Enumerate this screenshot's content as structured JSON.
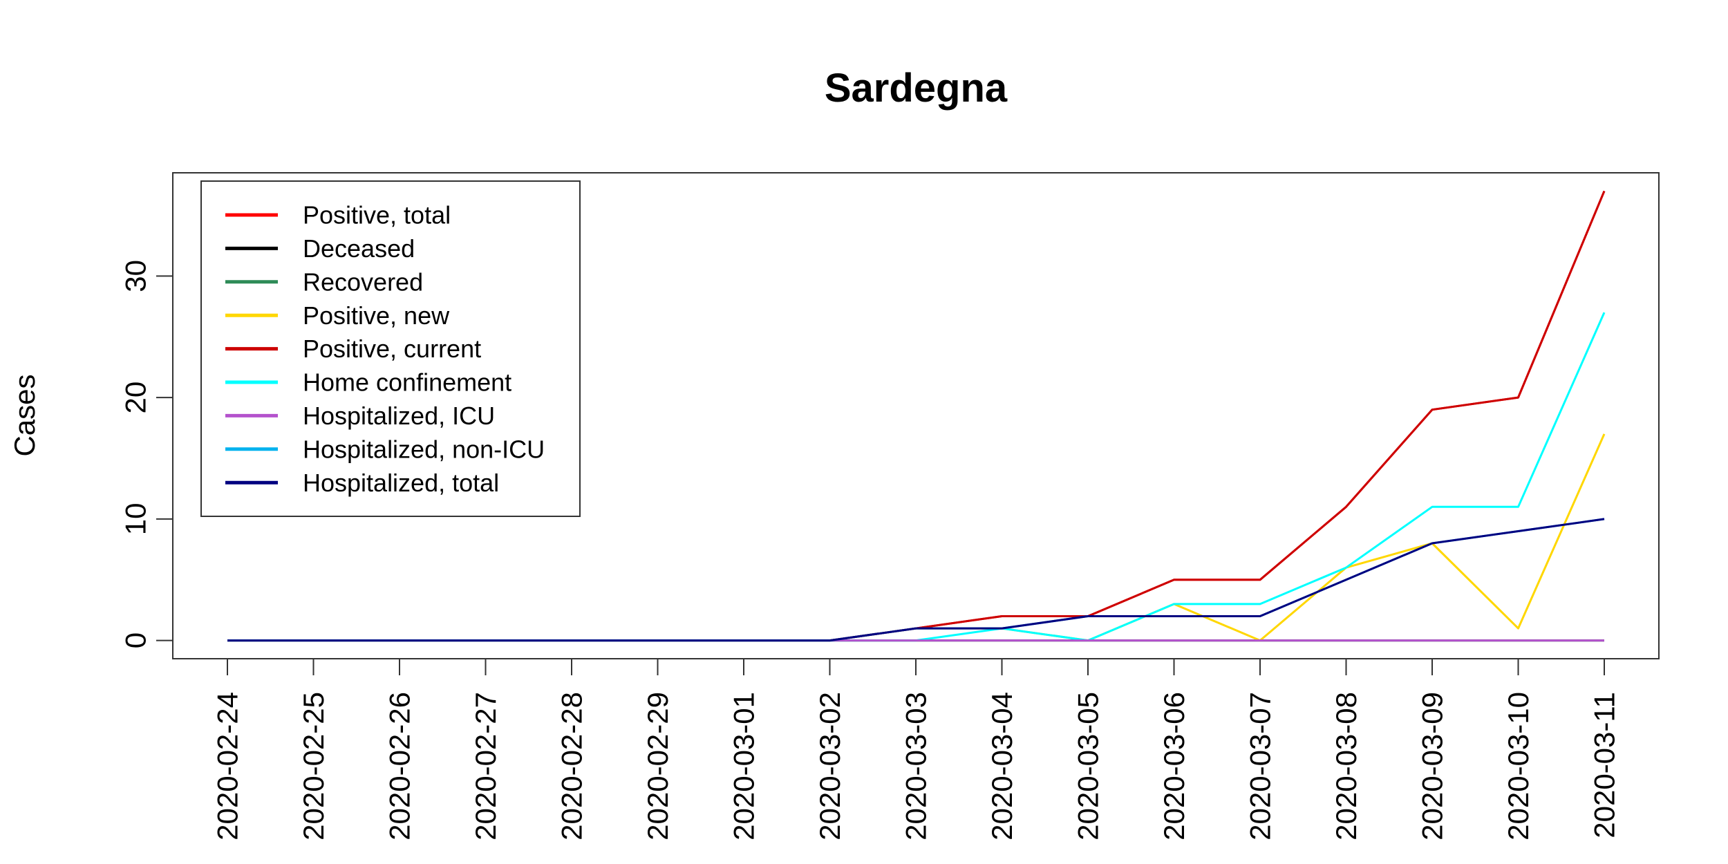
{
  "chart_data": {
    "type": "line",
    "title": "Sardegna",
    "xlabel": "",
    "ylabel": "Cases",
    "ylim": [
      -1.5,
      38.5
    ],
    "yticks": [
      0,
      10,
      20,
      30
    ],
    "grid": false,
    "legend_position": "top-left",
    "categories": [
      "2020-02-24",
      "2020-02-25",
      "2020-02-26",
      "2020-02-27",
      "2020-02-28",
      "2020-02-29",
      "2020-03-01",
      "2020-03-02",
      "2020-03-03",
      "2020-03-04",
      "2020-03-05",
      "2020-03-06",
      "2020-03-07",
      "2020-03-08",
      "2020-03-09",
      "2020-03-10",
      "2020-03-11"
    ],
    "series": [
      {
        "name": "Positive, total",
        "color": "#ff0000",
        "values": [
          0,
          0,
          0,
          0,
          0,
          0,
          0,
          0,
          1,
          2,
          2,
          5,
          5,
          11,
          19,
          20,
          37
        ]
      },
      {
        "name": "Deceased",
        "color": "#000000",
        "values": [
          0,
          0,
          0,
          0,
          0,
          0,
          0,
          0,
          0,
          0,
          0,
          0,
          0,
          0,
          0,
          0,
          0
        ]
      },
      {
        "name": "Recovered",
        "color": "#2e8b57",
        "values": [
          0,
          0,
          0,
          0,
          0,
          0,
          0,
          0,
          0,
          0,
          0,
          0,
          0,
          0,
          0,
          0,
          0
        ]
      },
      {
        "name": "Positive, new",
        "color": "#ffd700",
        "values": [
          0,
          0,
          0,
          0,
          0,
          0,
          0,
          0,
          1,
          1,
          0,
          3,
          0,
          6,
          8,
          1,
          17
        ]
      },
      {
        "name": "Positive, current",
        "color": "#cd0000",
        "values": [
          0,
          0,
          0,
          0,
          0,
          0,
          0,
          0,
          1,
          2,
          2,
          5,
          5,
          11,
          19,
          20,
          37
        ]
      },
      {
        "name": "Home confinement",
        "color": "#00ffff",
        "values": [
          0,
          0,
          0,
          0,
          0,
          0,
          0,
          0,
          0,
          1,
          0,
          3,
          3,
          6,
          11,
          11,
          27
        ]
      },
      {
        "name": "Hospitalized, ICU",
        "color": "#b452cd",
        "values": [
          0,
          0,
          0,
          0,
          0,
          0,
          0,
          0,
          0,
          0,
          0,
          0,
          0,
          0,
          0,
          0,
          0
        ]
      },
      {
        "name": "Hospitalized, non-ICU",
        "color": "#00b2ee",
        "values": [
          0,
          0,
          0,
          0,
          0,
          0,
          0,
          0,
          1,
          1,
          2,
          2,
          2,
          5,
          8,
          9,
          10
        ]
      },
      {
        "name": "Hospitalized, total",
        "color": "#000080",
        "values": [
          0,
          0,
          0,
          0,
          0,
          0,
          0,
          0,
          1,
          1,
          2,
          2,
          2,
          5,
          8,
          9,
          10
        ]
      }
    ]
  }
}
